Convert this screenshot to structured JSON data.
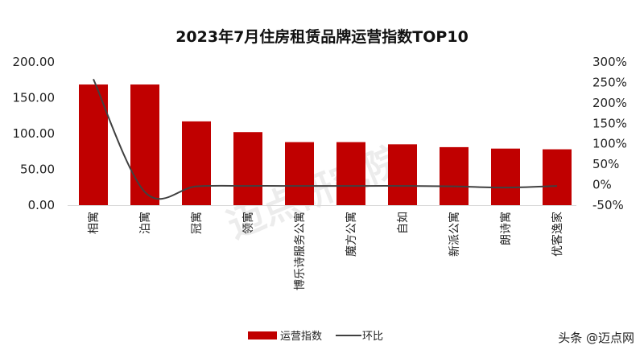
{
  "chart_data": {
    "type": "bar",
    "title": "2023年7月住房租赁品牌运营指数TOP10",
    "categories": [
      "相寓",
      "泊寓",
      "冠寓",
      "领寓",
      "博乐诗服务公寓",
      "魔方公寓",
      "自如",
      "新派公寓",
      "朗诗寓",
      "优客逸家"
    ],
    "series": [
      {
        "name": "运营指数",
        "type": "bar",
        "axis": "left",
        "color": "#C00000",
        "values": [
          168.5,
          168.5,
          117,
          102,
          88,
          88,
          85,
          81,
          79,
          78
        ]
      },
      {
        "name": "环比",
        "type": "line",
        "axis": "right",
        "color": "#404040",
        "unit": "%",
        "values": [
          258,
          -18,
          -4,
          -3,
          -3,
          -3,
          -3,
          -4,
          -7,
          -3
        ]
      }
    ],
    "left_axis": {
      "ylim": [
        0,
        200
      ],
      "ticks": [
        "0.00",
        "50.00",
        "100.00",
        "150.00",
        "200.00"
      ]
    },
    "right_axis": {
      "ylim": [
        -50,
        300
      ],
      "ticks": [
        "-50%",
        "0%",
        "50%",
        "100%",
        "150%",
        "200%",
        "250%",
        "300%"
      ]
    },
    "grid": false,
    "legend": "bottom"
  },
  "watermarks": {
    "background": "迈点研究院",
    "corner": "头条 @迈点网"
  }
}
